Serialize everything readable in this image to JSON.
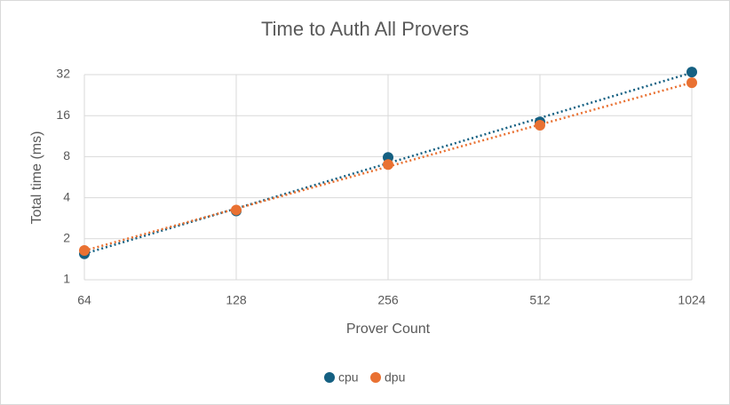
{
  "chart_data": {
    "type": "scatter",
    "title": "Time to Auth All Provers",
    "x_label": "Prover Count",
    "y_label": "Total time (ms)",
    "x": [
      64,
      128,
      256,
      512,
      1024
    ],
    "series": [
      {
        "name": "cpu",
        "color": "#156082",
        "values": [
          1.55,
          3.2,
          7.9,
          14.4,
          33.4
        ]
      },
      {
        "name": "dpu",
        "color": "#e97132",
        "values": [
          1.64,
          3.25,
          7.0,
          13.6,
          27.9
        ]
      }
    ],
    "xlim": [
      64,
      1024
    ],
    "xticks": [
      64,
      128,
      256,
      512,
      1024
    ],
    "ylim": [
      1,
      32
    ],
    "yticks": [
      1,
      2,
      4,
      8,
      16,
      32
    ],
    "x_log_base": 2,
    "y_log_base": 2,
    "grid": true,
    "trendline": "power",
    "legend": "bottom"
  }
}
